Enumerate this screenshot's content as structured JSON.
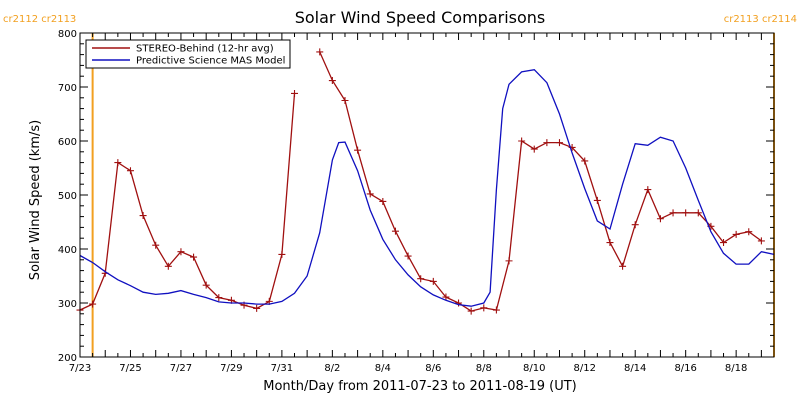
{
  "chart_data": {
    "type": "line",
    "title": "Solar Wind Speed Comparisons",
    "xlabel": "Month/Day from 2011-07-23 to 2011-08-19 (UT)",
    "ylabel": "Solar Wind Speed (km/s)",
    "xlim": [
      "2011-07-23",
      "2011-08-19T12"
    ],
    "ylim": [
      200,
      800
    ],
    "yticks": [
      200,
      300,
      400,
      500,
      600,
      700,
      800
    ],
    "xtick_labels": [
      "7/23",
      "7/25",
      "7/27",
      "7/29",
      "7/31",
      "8/2",
      "8/4",
      "8/6",
      "8/8",
      "8/10",
      "8/12",
      "8/14",
      "8/16",
      "8/18"
    ],
    "carrington_rotations": [
      {
        "date": "2011-07-23T12",
        "label": "cr2112 cr2113"
      },
      {
        "date": "2011-08-19T12",
        "label": "cr2113 cr2114"
      }
    ],
    "cr_color": "#f2a020",
    "legend_position": "top-left",
    "series": [
      {
        "name": "STEREO-Behind (12-hr avg)",
        "color": "#a01010",
        "marker": "+",
        "segments": [
          [
            {
              "x": "2011-07-23",
              "y": 287
            },
            {
              "x": "2011-07-23T12",
              "y": 298
            },
            {
              "x": "2011-07-24",
              "y": 355
            },
            {
              "x": "2011-07-24T12",
              "y": 560
            },
            {
              "x": "2011-07-25",
              "y": 545
            },
            {
              "x": "2011-07-25T12",
              "y": 462
            },
            {
              "x": "2011-07-26",
              "y": 407
            },
            {
              "x": "2011-07-26T12",
              "y": 368
            },
            {
              "x": "2011-07-27",
              "y": 395
            },
            {
              "x": "2011-07-27T12",
              "y": 385
            },
            {
              "x": "2011-07-28",
              "y": 333
            },
            {
              "x": "2011-07-28T12",
              "y": 310
            },
            {
              "x": "2011-07-29",
              "y": 305
            },
            {
              "x": "2011-07-29T12",
              "y": 296
            },
            {
              "x": "2011-07-30",
              "y": 290
            },
            {
              "x": "2011-07-30T12",
              "y": 303
            },
            {
              "x": "2011-07-31",
              "y": 390
            },
            {
              "x": "2011-07-31T12",
              "y": 688
            }
          ],
          [
            {
              "x": "2011-08-01T12",
              "y": 765
            },
            {
              "x": "2011-08-02",
              "y": 712
            },
            {
              "x": "2011-08-02T12",
              "y": 675
            },
            {
              "x": "2011-08-03",
              "y": 583
            },
            {
              "x": "2011-08-03T12",
              "y": 502
            },
            {
              "x": "2011-08-04",
              "y": 488
            },
            {
              "x": "2011-08-04T12",
              "y": 433
            },
            {
              "x": "2011-08-05",
              "y": 387
            },
            {
              "x": "2011-08-05T12",
              "y": 345
            },
            {
              "x": "2011-08-06",
              "y": 340
            },
            {
              "x": "2011-08-06T12",
              "y": 311
            },
            {
              "x": "2011-08-07",
              "y": 300
            },
            {
              "x": "2011-08-07T12",
              "y": 285
            },
            {
              "x": "2011-08-08",
              "y": 291
            },
            {
              "x": "2011-08-08T12",
              "y": 287
            },
            {
              "x": "2011-08-09",
              "y": 378
            },
            {
              "x": "2011-08-09T12",
              "y": 600
            },
            {
              "x": "2011-08-10",
              "y": 585
            },
            {
              "x": "2011-08-10T12",
              "y": 597
            },
            {
              "x": "2011-08-11",
              "y": 597
            },
            {
              "x": "2011-08-11T12",
              "y": 588
            },
            {
              "x": "2011-08-12",
              "y": 563
            },
            {
              "x": "2011-08-12T12",
              "y": 490
            },
            {
              "x": "2011-08-13",
              "y": 412
            },
            {
              "x": "2011-08-13T12",
              "y": 368
            },
            {
              "x": "2011-08-14",
              "y": 445
            },
            {
              "x": "2011-08-14T12",
              "y": 510
            },
            {
              "x": "2011-08-15",
              "y": 456
            },
            {
              "x": "2011-08-15T12",
              "y": 467
            },
            {
              "x": "2011-08-16",
              "y": 467
            },
            {
              "x": "2011-08-16T12",
              "y": 467
            },
            {
              "x": "2011-08-17",
              "y": 442
            },
            {
              "x": "2011-08-17T12",
              "y": 412
            },
            {
              "x": "2011-08-18",
              "y": 427
            },
            {
              "x": "2011-08-18T12",
              "y": 432
            },
            {
              "x": "2011-08-19",
              "y": 415
            }
          ]
        ]
      },
      {
        "name": "Predictive Science MAS Model",
        "color": "#1010c0",
        "marker": "none",
        "segments": [
          [
            {
              "x": "2011-07-23",
              "y": 388
            },
            {
              "x": "2011-07-23T12",
              "y": 375
            },
            {
              "x": "2011-07-24",
              "y": 358
            },
            {
              "x": "2011-07-24T12",
              "y": 343
            },
            {
              "x": "2011-07-25",
              "y": 332
            },
            {
              "x": "2011-07-25T12",
              "y": 320
            },
            {
              "x": "2011-07-26",
              "y": 316
            },
            {
              "x": "2011-07-26T12",
              "y": 318
            },
            {
              "x": "2011-07-27",
              "y": 323
            },
            {
              "x": "2011-07-27T12",
              "y": 316
            },
            {
              "x": "2011-07-28",
              "y": 310
            },
            {
              "x": "2011-07-28T12",
              "y": 302
            },
            {
              "x": "2011-07-29",
              "y": 300
            },
            {
              "x": "2011-07-29T12",
              "y": 300
            },
            {
              "x": "2011-07-30",
              "y": 298
            },
            {
              "x": "2011-07-30T12",
              "y": 298
            },
            {
              "x": "2011-07-31",
              "y": 303
            },
            {
              "x": "2011-07-31T12",
              "y": 318
            },
            {
              "x": "2011-08-01",
              "y": 350
            },
            {
              "x": "2011-08-01T12",
              "y": 430
            },
            {
              "x": "2011-08-02",
              "y": 565
            },
            {
              "x": "2011-08-02T06",
              "y": 597
            },
            {
              "x": "2011-08-02T12",
              "y": 598
            },
            {
              "x": "2011-08-03",
              "y": 545
            },
            {
              "x": "2011-08-03T12",
              "y": 472
            },
            {
              "x": "2011-08-04",
              "y": 418
            },
            {
              "x": "2011-08-04T12",
              "y": 380
            },
            {
              "x": "2011-08-05",
              "y": 352
            },
            {
              "x": "2011-08-05T12",
              "y": 330
            },
            {
              "x": "2011-08-06",
              "y": 315
            },
            {
              "x": "2011-08-06T12",
              "y": 305
            },
            {
              "x": "2011-08-07",
              "y": 297
            },
            {
              "x": "2011-08-07T12",
              "y": 294
            },
            {
              "x": "2011-08-08",
              "y": 300
            },
            {
              "x": "2011-08-08T06",
              "y": 320
            },
            {
              "x": "2011-08-08T12",
              "y": 510
            },
            {
              "x": "2011-08-08T18",
              "y": 660
            },
            {
              "x": "2011-08-09",
              "y": 705
            },
            {
              "x": "2011-08-09T12",
              "y": 728
            },
            {
              "x": "2011-08-10",
              "y": 732
            },
            {
              "x": "2011-08-10T12",
              "y": 708
            },
            {
              "x": "2011-08-11",
              "y": 650
            },
            {
              "x": "2011-08-11T12",
              "y": 578
            },
            {
              "x": "2011-08-12",
              "y": 512
            },
            {
              "x": "2011-08-12T12",
              "y": 452
            },
            {
              "x": "2011-08-13",
              "y": 437
            },
            {
              "x": "2011-08-13T12",
              "y": 520
            },
            {
              "x": "2011-08-14",
              "y": 595
            },
            {
              "x": "2011-08-14T12",
              "y": 592
            },
            {
              "x": "2011-08-15",
              "y": 607
            },
            {
              "x": "2011-08-15T12",
              "y": 600
            },
            {
              "x": "2011-08-16",
              "y": 550
            },
            {
              "x": "2011-08-16T12",
              "y": 490
            },
            {
              "x": "2011-08-17",
              "y": 432
            },
            {
              "x": "2011-08-17T12",
              "y": 392
            },
            {
              "x": "2011-08-18",
              "y": 372
            },
            {
              "x": "2011-08-18T12",
              "y": 372
            },
            {
              "x": "2011-08-19",
              "y": 395
            },
            {
              "x": "2011-08-19T12",
              "y": 390
            }
          ]
        ]
      }
    ]
  }
}
